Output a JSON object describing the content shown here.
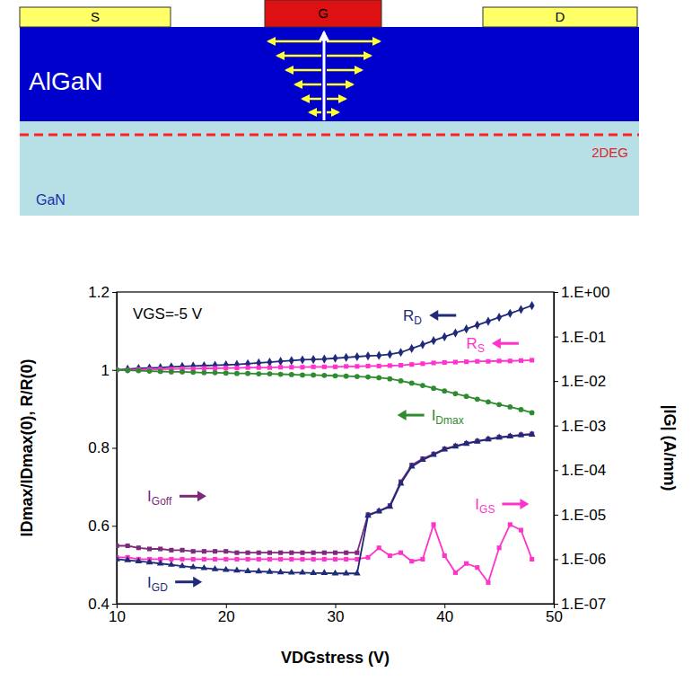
{
  "diagram": {
    "source": "S",
    "gate": "G",
    "drain": "D",
    "barrier": "AlGaN",
    "channel": "2DEG",
    "buffer": "GaN"
  },
  "chart_data": {
    "type": "line",
    "annotation": "VGS=-5 V",
    "xlabel": "VDGstress (V)",
    "ylabel": "IDmax/IDmax(0), R/R(0)",
    "y2label": "|IG| (A/mm)",
    "log": "y2",
    "xlim": [
      10,
      50
    ],
    "xticks": [
      10,
      20,
      30,
      40,
      50
    ],
    "ylim": [
      0.4,
      1.2
    ],
    "yticks": [
      0.4,
      0.6,
      0.8,
      1,
      1.2
    ],
    "y2lim": [
      1e-07,
      1
    ],
    "y2ticks": [
      {
        "value": 1e-07,
        "label": "1.E-07"
      },
      {
        "value": 1e-06,
        "label": "1.E-06"
      },
      {
        "value": 1e-05,
        "label": "1.E-05"
      },
      {
        "value": 0.0001,
        "label": "1.E-04"
      },
      {
        "value": 0.001,
        "label": "1.E-03"
      },
      {
        "value": 0.01,
        "label": "1.E-02"
      },
      {
        "value": 0.1,
        "label": "1.E-01"
      },
      {
        "value": 1,
        "label": "1.E+00"
      }
    ],
    "x": [
      10,
      11,
      12,
      13,
      14,
      15,
      16,
      17,
      18,
      19,
      20,
      21,
      22,
      23,
      24,
      25,
      26,
      27,
      28,
      29,
      30,
      31,
      32,
      33,
      34,
      35,
      36,
      37,
      38,
      39,
      40,
      41,
      42,
      43,
      44,
      45,
      46,
      47,
      48
    ],
    "series": [
      {
        "name": "RD",
        "color": "#1f2a7a",
        "marker": "diamond",
        "values": [
          1.0,
          1.002,
          1.004,
          1.005,
          1.006,
          1.008,
          1.009,
          1.01,
          1.011,
          1.012,
          1.013,
          1.014,
          1.016,
          1.018,
          1.02,
          1.022,
          1.024,
          1.026,
          1.027,
          1.028,
          1.03,
          1.032,
          1.034,
          1.036,
          1.037,
          1.04,
          1.045,
          1.055,
          1.065,
          1.075,
          1.085,
          1.095,
          1.105,
          1.115,
          1.125,
          1.135,
          1.145,
          1.155,
          1.165
        ]
      },
      {
        "name": "RS",
        "color": "#ff33cc",
        "marker": "square",
        "values": [
          1.0,
          1.0,
          1.001,
          1.001,
          1.002,
          1.002,
          1.003,
          1.003,
          1.004,
          1.004,
          1.005,
          1.005,
          1.006,
          1.006,
          1.006,
          1.007,
          1.007,
          1.007,
          1.008,
          1.008,
          1.008,
          1.009,
          1.009,
          1.01,
          1.01,
          1.011,
          1.012,
          1.014,
          1.016,
          1.018,
          1.019,
          1.02,
          1.021,
          1.022,
          1.022,
          1.023,
          1.023,
          1.024,
          1.025
        ]
      },
      {
        "name": "IDmax",
        "color": "#2e8b2e",
        "marker": "circle",
        "values": [
          1.0,
          0.999,
          0.998,
          0.997,
          0.996,
          0.995,
          0.995,
          0.994,
          0.993,
          0.993,
          0.992,
          0.991,
          0.991,
          0.99,
          0.99,
          0.989,
          0.988,
          0.987,
          0.987,
          0.986,
          0.985,
          0.984,
          0.983,
          0.982,
          0.98,
          0.977,
          0.972,
          0.966,
          0.96,
          0.953,
          0.946,
          0.939,
          0.932,
          0.925,
          0.918,
          0.911,
          0.905,
          0.898,
          0.89
        ]
      },
      {
        "name": "IGoff",
        "color": "#7b2a7b",
        "marker": "square",
        "axis": "y2",
        "values": [
          2e-06,
          2e-06,
          1.8e-06,
          1.7e-06,
          1.7e-06,
          1.6e-06,
          1.6e-06,
          1.5e-06,
          1.5e-06,
          1.5e-06,
          1.5e-06,
          1.4e-06,
          1.4e-06,
          1.4e-06,
          1.4e-06,
          1.4e-06,
          1.4e-06,
          1.4e-06,
          1.4e-06,
          1.4e-06,
          1.4e-06,
          1.4e-06,
          1.4e-06,
          1e-05,
          1.2e-05,
          1.6e-05,
          5.5e-05,
          0.00013,
          0.00018,
          0.00023,
          0.0003,
          0.00035,
          0.0004,
          0.00045,
          0.0005,
          0.00055,
          0.00058,
          0.00062,
          0.00065
        ]
      },
      {
        "name": "IGS",
        "color": "#ff33cc",
        "marker": "square",
        "axis": "y2",
        "values": [
          1.1e-06,
          1.1e-06,
          1e-06,
          1e-06,
          1e-06,
          1e-06,
          1e-06,
          1e-06,
          1e-06,
          1e-06,
          1e-06,
          1e-06,
          1e-06,
          1e-06,
          1e-06,
          1e-06,
          1e-06,
          1e-06,
          1e-06,
          1e-06,
          1e-06,
          1e-06,
          1e-06,
          1.1e-06,
          1.8e-06,
          1.2e-06,
          1.4e-06,
          9e-07,
          1e-06,
          6e-06,
          1.2e-06,
          5e-07,
          8e-07,
          6.5e-07,
          3e-07,
          1.8e-06,
          6e-06,
          4.5e-06,
          1e-06
        ]
      },
      {
        "name": "IGD",
        "color": "#1f2a7a",
        "marker": "triangle",
        "axis": "y2",
        "values": [
          1e-06,
          9.5e-07,
          9e-07,
          8.5e-07,
          8e-07,
          7.5e-07,
          7e-07,
          6.6e-07,
          6.3e-07,
          6e-07,
          5.8e-07,
          5.6e-07,
          5.4e-07,
          5.3e-07,
          5.2e-07,
          5.1e-07,
          5e-07,
          5e-07,
          4.9e-07,
          4.9e-07,
          4.8e-07,
          4.8e-07,
          4.8e-07,
          9.5e-06,
          1.2e-05,
          1.5e-05,
          5e-05,
          0.00012,
          0.00017,
          0.00022,
          0.00029,
          0.00034,
          0.00039,
          0.00044,
          0.00049,
          0.00054,
          0.00057,
          0.00061,
          0.00063
        ]
      }
    ]
  }
}
